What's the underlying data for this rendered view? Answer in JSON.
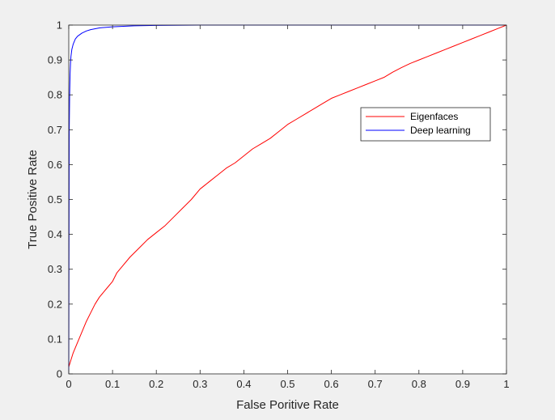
{
  "chart_data": {
    "type": "line",
    "xlabel": "False Poritive Rate",
    "ylabel": "True Positive Rate",
    "xlim": [
      0,
      1
    ],
    "ylim": [
      0,
      1
    ],
    "xticks": [
      "0",
      "0.1",
      "0.2",
      "0.3",
      "0.4",
      "0.5",
      "0.6",
      "0.7",
      "0.8",
      "0.9",
      "1"
    ],
    "yticks": [
      "0",
      "0.1",
      "0.2",
      "0.3",
      "0.4",
      "0.5",
      "0.6",
      "0.7",
      "0.8",
      "0.9",
      "1"
    ],
    "grid": false,
    "legend": "top-right",
    "series": [
      {
        "name": "Eigenfaces",
        "color": "#ff0000",
        "x": [
          0,
          0.005,
          0.01,
          0.02,
          0.03,
          0.04,
          0.05,
          0.06,
          0.07,
          0.08,
          0.09,
          0.1,
          0.11,
          0.12,
          0.14,
          0.16,
          0.18,
          0.2,
          0.22,
          0.24,
          0.26,
          0.28,
          0.3,
          0.32,
          0.34,
          0.36,
          0.38,
          0.4,
          0.42,
          0.44,
          0.46,
          0.48,
          0.5,
          0.52,
          0.54,
          0.56,
          0.58,
          0.6,
          0.62,
          0.64,
          0.66,
          0.68,
          0.7,
          0.72,
          0.74,
          0.76,
          0.78,
          0.8,
          0.82,
          0.84,
          0.86,
          0.88,
          0.9,
          0.92,
          0.94,
          0.96,
          0.98,
          1
        ],
        "y": [
          0.02,
          0.04,
          0.06,
          0.09,
          0.12,
          0.15,
          0.175,
          0.2,
          0.22,
          0.235,
          0.25,
          0.265,
          0.29,
          0.305,
          0.335,
          0.36,
          0.385,
          0.405,
          0.425,
          0.45,
          0.475,
          0.5,
          0.53,
          0.55,
          0.57,
          0.59,
          0.605,
          0.625,
          0.645,
          0.66,
          0.675,
          0.695,
          0.715,
          0.73,
          0.745,
          0.76,
          0.775,
          0.79,
          0.8,
          0.81,
          0.82,
          0.83,
          0.84,
          0.85,
          0.865,
          0.878,
          0.89,
          0.9,
          0.91,
          0.92,
          0.93,
          0.94,
          0.95,
          0.96,
          0.97,
          0.98,
          0.99,
          1
        ]
      },
      {
        "name": "Deep learning",
        "color": "#0000ff",
        "x": [
          0,
          0.001,
          0.002,
          0.003,
          0.004,
          0.005,
          0.007,
          0.01,
          0.015,
          0.02,
          0.03,
          0.04,
          0.05,
          0.07,
          0.1,
          0.15,
          0.2,
          0.3,
          0.5,
          0.7,
          1
        ],
        "y": [
          0,
          0.69,
          0.8,
          0.86,
          0.89,
          0.91,
          0.93,
          0.945,
          0.96,
          0.968,
          0.977,
          0.983,
          0.987,
          0.992,
          0.995,
          0.998,
          0.999,
          1,
          1,
          1,
          1
        ]
      }
    ]
  }
}
